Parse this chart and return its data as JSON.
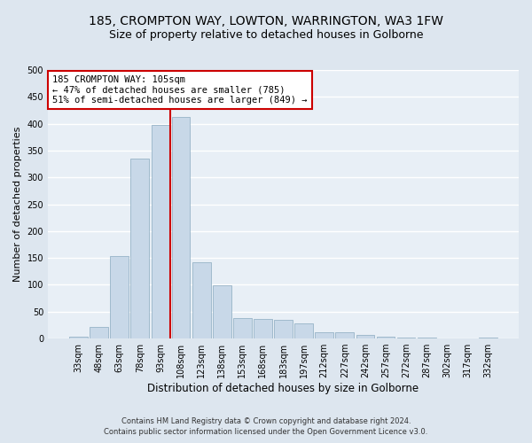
{
  "title1": "185, CROMPTON WAY, LOWTON, WARRINGTON, WA3 1FW",
  "title2": "Size of property relative to detached houses in Golborne",
  "xlabel": "Distribution of detached houses by size in Golborne",
  "ylabel": "Number of detached properties",
  "categories": [
    "33sqm",
    "48sqm",
    "63sqm",
    "78sqm",
    "93sqm",
    "108sqm",
    "123sqm",
    "138sqm",
    "153sqm",
    "168sqm",
    "183sqm",
    "197sqm",
    "212sqm",
    "227sqm",
    "242sqm",
    "257sqm",
    "272sqm",
    "287sqm",
    "302sqm",
    "317sqm",
    "332sqm"
  ],
  "values": [
    3,
    22,
    153,
    335,
    397,
    413,
    142,
    99,
    38,
    37,
    35,
    28,
    12,
    11,
    7,
    4,
    2,
    1,
    0,
    0,
    2
  ],
  "bar_color": "#c8d8e8",
  "bar_edge_color": "#8aaabf",
  "vline_idx": 5,
  "vline_color": "#cc0000",
  "annotation_line1": "185 CROMPTON WAY: 105sqm",
  "annotation_line2": "← 47% of detached houses are smaller (785)",
  "annotation_line3": "51% of semi-detached houses are larger (849) →",
  "annotation_box_color": "#ffffff",
  "annotation_box_edge": "#cc0000",
  "footer1": "Contains HM Land Registry data © Crown copyright and database right 2024.",
  "footer2": "Contains public sector information licensed under the Open Government Licence v3.0.",
  "bg_color": "#dde6ef",
  "plot_bg_color": "#e8eff6",
  "grid_color": "#ffffff",
  "title_fontsize": 10,
  "subtitle_fontsize": 9,
  "ylabel_fontsize": 8,
  "xlabel_fontsize": 8.5,
  "tick_fontsize": 7,
  "footer_fontsize": 6,
  "annotation_fontsize": 7.5,
  "ylim": [
    0,
    500
  ],
  "yticks": [
    0,
    50,
    100,
    150,
    200,
    250,
    300,
    350,
    400,
    450,
    500
  ]
}
